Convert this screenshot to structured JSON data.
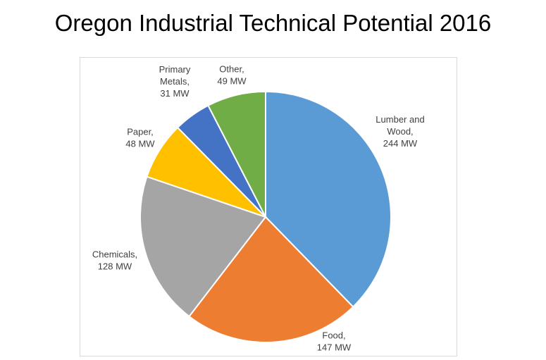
{
  "title": "Oregon Industrial Technical Potential 2016",
  "chart_data": {
    "type": "pie",
    "unit": "MW",
    "start_angle_deg": 0,
    "direction": "clockwise",
    "slices": [
      {
        "name": "Lumber and Wood",
        "value": 244,
        "label_lines": [
          "Lumber and",
          "Wood,",
          "244 MW"
        ],
        "color": "#5B9BD5"
      },
      {
        "name": "Food",
        "value": 147,
        "label_lines": [
          "Food,",
          "147 MW"
        ],
        "color": "#ED7D31"
      },
      {
        "name": "Chemicals",
        "value": 128,
        "label_lines": [
          "Chemicals,",
          "128 MW"
        ],
        "color": "#A5A5A5"
      },
      {
        "name": "Paper",
        "value": 48,
        "label_lines": [
          "Paper,",
          "48 MW"
        ],
        "color": "#FFC000"
      },
      {
        "name": "Primary Metals",
        "value": 31,
        "label_lines": [
          "Primary",
          "Metals,",
          "31 MW"
        ],
        "color": "#4472C4"
      },
      {
        "name": "Other",
        "value": 49,
        "label_lines": [
          "Other,",
          "49 MW"
        ],
        "color": "#70AD47"
      }
    ],
    "legend": "none",
    "border_color": "#ffffff"
  }
}
